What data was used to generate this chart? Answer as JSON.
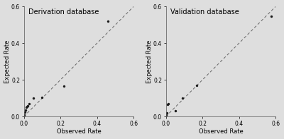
{
  "left_title": "Derivation database",
  "right_title": "Validation database",
  "xlabel": "Observed Rate",
  "ylabel": "Expected Rate",
  "xlim": [
    0,
    0.6
  ],
  "ylim": [
    0,
    0.6
  ],
  "xticks": [
    0.0,
    0.2,
    0.4,
    0.6
  ],
  "yticks": [
    0.0,
    0.2,
    0.4,
    0.6
  ],
  "left_points_x": [
    0.003,
    0.006,
    0.01,
    0.013,
    0.016,
    0.02,
    0.03,
    0.05,
    0.1,
    0.22,
    0.46
  ],
  "left_points_y": [
    0.01,
    0.025,
    0.035,
    0.05,
    0.055,
    0.06,
    0.07,
    0.1,
    0.105,
    0.165,
    0.52
  ],
  "right_points_x": [
    0.003,
    0.005,
    0.008,
    0.013,
    0.05,
    0.09,
    0.17,
    0.575
  ],
  "right_points_y": [
    0.01,
    0.02,
    0.065,
    0.07,
    0.03,
    0.1,
    0.17,
    0.545
  ],
  "line_color": "#666666",
  "point_color": "#1a1a1a",
  "bg_color": "#dedede",
  "title_fontsize": 7.0,
  "label_fontsize": 6.0,
  "tick_fontsize": 5.5
}
